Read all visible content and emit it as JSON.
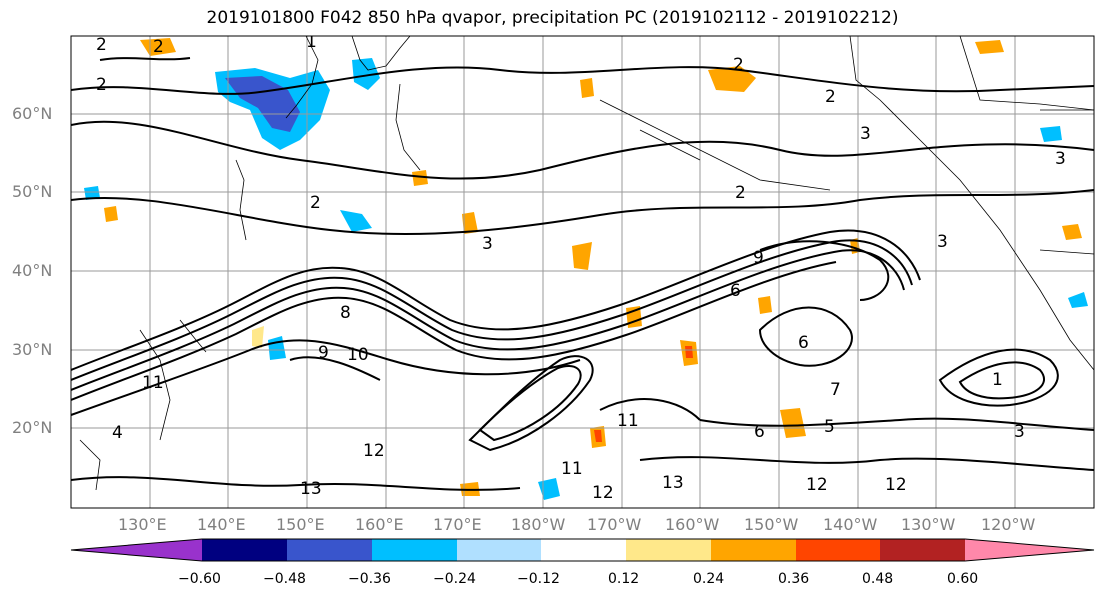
{
  "title": "2019101800 F042 850 hPa qvapor, precipitation PC (2019102112 - 2019102212)",
  "lat_labels": [
    "60°N",
    "50°N",
    "40°N",
    "30°N",
    "20°N"
  ],
  "lon_labels": [
    "130°E",
    "140°E",
    "150°E",
    "160°E",
    "170°E",
    "180°W",
    "170°W",
    "160°W",
    "150°W",
    "140°W",
    "130°W",
    "120°W"
  ],
  "colorbar": {
    "colors": [
      "#9932cc",
      "#000080",
      "#3955cc",
      "#00bfff",
      "#b0e0ff",
      "#ffffff",
      "#ffe88a",
      "#ffa500",
      "#ff4500",
      "#b22222",
      "#ff88aa"
    ],
    "tick_labels": [
      "−0.60",
      "−0.48",
      "−0.36",
      "−0.24",
      "−0.12",
      "0.12",
      "0.24",
      "0.36",
      "0.48",
      "0.60"
    ]
  },
  "contour_labels": [
    "2",
    "2",
    "1",
    "2",
    "2",
    "3",
    "3",
    "2",
    "2",
    "2",
    "3",
    "3",
    "9",
    "6",
    "6",
    "9",
    "10",
    "11",
    "11",
    "12",
    "12",
    "12",
    "13",
    "13",
    "12",
    "11",
    "8",
    "5",
    "3",
    "7",
    "1",
    "6",
    "4"
  ]
}
